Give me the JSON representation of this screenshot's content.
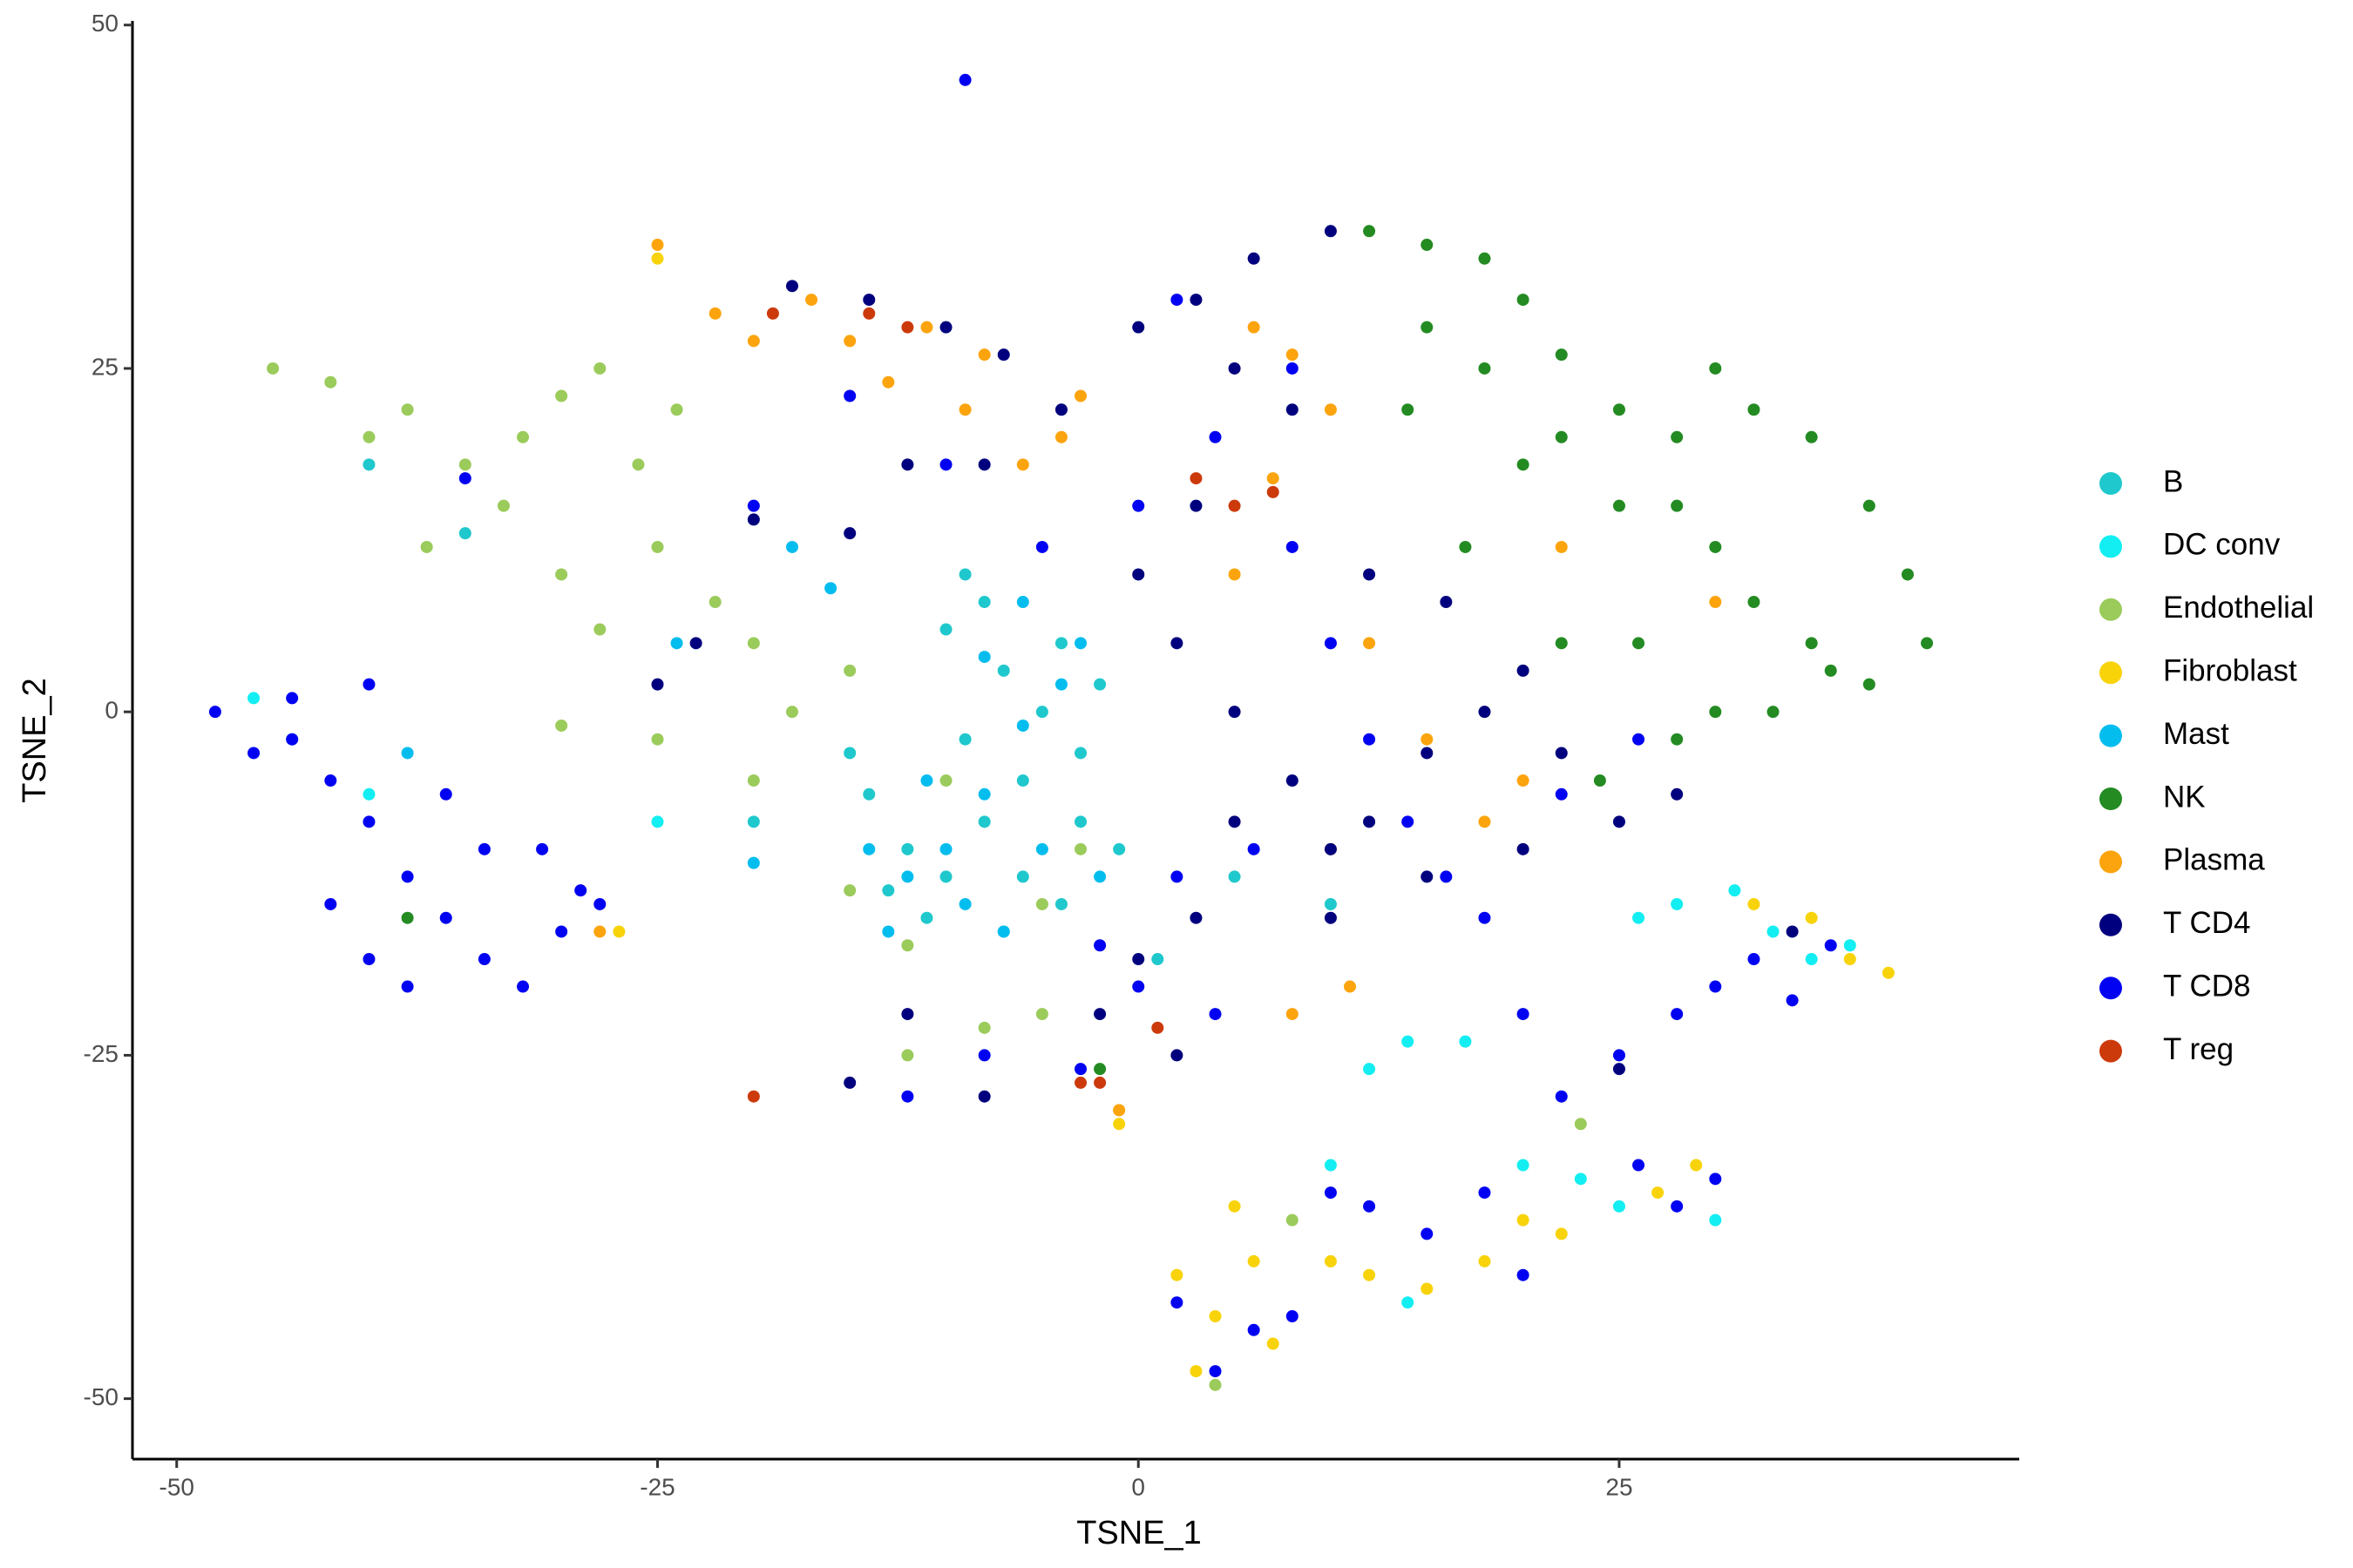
{
  "chart_data": {
    "type": "scatter",
    "x_label": "TSNE_1",
    "y_label": "TSNE_2",
    "xlim": [
      -52.3,
      45.8
    ],
    "ylim": [
      -54.4,
      50.3
    ],
    "xticks": [
      -50,
      -25,
      0,
      25
    ],
    "yticks": [
      -50,
      -25,
      0,
      25,
      50
    ],
    "grid": false,
    "legend": "right",
    "series": [
      {
        "name": "B",
        "color": "#1fc8cc",
        "x": [
          -12,
          -10,
          -8,
          -6,
          -5,
          -4,
          -7,
          -9,
          -13,
          -11,
          -6,
          -3,
          -2,
          -8,
          -10,
          -14,
          -4,
          -1,
          -15,
          -7,
          1,
          5,
          -20,
          -9,
          -3,
          10,
          -35,
          -40
        ],
        "values": [
          -10,
          -12,
          -8,
          -5,
          0,
          5,
          3,
          -2,
          -13,
          -15,
          -12,
          -8,
          2,
          8,
          6,
          -6,
          -14,
          -10,
          -3,
          -16,
          -18,
          -12,
          -8,
          10,
          -3,
          -14,
          13,
          18
        ]
      },
      {
        "name": "DC conv",
        "color": "#12eef2",
        "x": [
          28,
          31,
          33,
          35,
          37,
          14,
          12,
          17,
          20,
          10,
          14,
          25,
          30,
          23,
          26,
          -46,
          -40,
          -25
        ],
        "values": [
          -14,
          -13,
          -16,
          -18,
          -17,
          -24,
          -26,
          -24,
          -33,
          -33,
          -43,
          -36,
          -37,
          -34,
          -15,
          1,
          -6,
          -8
        ]
      },
      {
        "name": "Endothelial",
        "color": "#9bcb5b",
        "x": [
          -45,
          -42,
          -38,
          -35,
          -32,
          -30,
          -28,
          -33,
          -37,
          -30,
          -25,
          -22,
          -20,
          -28,
          -18,
          -20,
          -15,
          -12,
          -5,
          -3,
          -30,
          -25,
          -40,
          -26,
          -24,
          -15,
          -10,
          -8,
          -12,
          -5,
          23,
          4,
          8
        ],
        "values": [
          25,
          24,
          22,
          18,
          20,
          23,
          25,
          15,
          12,
          10,
          12,
          8,
          5,
          6,
          0,
          -5,
          -13,
          -17,
          -14,
          -10,
          -1,
          -2,
          20,
          18,
          22,
          3,
          -5,
          -23,
          -25,
          -22,
          -30,
          -49,
          -37
        ]
      },
      {
        "name": "Fibroblast",
        "color": "#f8d30a",
        "x": [
          2,
          4,
          6,
          3,
          7,
          5,
          10,
          12,
          15,
          18,
          20,
          22,
          27,
          29,
          32,
          35,
          37,
          39,
          -1,
          -1,
          -25,
          -27
        ],
        "values": [
          -41,
          -44,
          -40,
          -48,
          -46,
          -36,
          -40,
          -41,
          -42,
          -40,
          -37,
          -38,
          -35,
          -33,
          -14,
          -15,
          -18,
          -19,
          -30,
          -29,
          33,
          -16
        ]
      },
      {
        "name": "Mast",
        "color": "#04bdef",
        "x": [
          -12,
          -10,
          -8,
          -6,
          -4,
          -3,
          -6,
          -11,
          -13,
          -9,
          -5,
          -2,
          -7,
          -14,
          -8,
          -16,
          -18,
          -24,
          -38,
          -44,
          -20
        ],
        "values": [
          -12,
          -10,
          -6,
          -1,
          2,
          5,
          8,
          -5,
          -16,
          -14,
          -10,
          -12,
          -16,
          -10,
          4,
          9,
          12,
          5,
          -3,
          -2,
          -11
        ]
      },
      {
        "name": "NK",
        "color": "#238b22",
        "x": [
          12,
          15,
          18,
          20,
          22,
          25,
          28,
          30,
          32,
          35,
          38,
          40,
          41,
          38,
          35,
          32,
          30,
          28,
          25,
          22,
          18,
          15,
          20,
          26,
          30,
          28,
          33,
          36,
          14,
          17,
          22,
          24,
          -2,
          -38
        ],
        "values": [
          35,
          34,
          33,
          30,
          26,
          22,
          20,
          25,
          22,
          20,
          15,
          10,
          5,
          2,
          5,
          8,
          12,
          15,
          15,
          20,
          25,
          28,
          18,
          5,
          0,
          -2,
          0,
          3,
          22,
          12,
          5,
          -5,
          -26,
          -15
        ]
      },
      {
        "name": "Plasma",
        "color": "#fca40d",
        "x": [
          -22,
          -20,
          -17,
          -15,
          -13,
          -11,
          -9,
          -8,
          -6,
          -4,
          -3,
          6,
          8,
          10,
          7,
          12,
          15,
          18,
          10,
          20,
          -25,
          -28,
          -1,
          8,
          5,
          11,
          30,
          22
        ],
        "values": [
          29,
          27,
          30,
          27,
          24,
          28,
          22,
          26,
          18,
          20,
          23,
          28,
          26,
          22,
          17,
          5,
          -2,
          -8,
          -10,
          -5,
          34,
          -16,
          -29,
          -22,
          10,
          -20,
          8,
          12
        ]
      },
      {
        "name": "T CD4",
        "color": "#00007e",
        "x": [
          -18,
          -14,
          -10,
          -7,
          -4,
          -8,
          -12,
          -15,
          -20,
          -23,
          -25,
          0,
          3,
          6,
          5,
          8,
          3,
          0,
          2,
          5,
          8,
          10,
          12,
          15,
          18,
          20,
          22,
          20,
          15,
          10,
          5,
          3,
          0,
          -2,
          2,
          -12,
          -15,
          12,
          16,
          25,
          28,
          10,
          -8,
          25,
          34
        ],
        "values": [
          31,
          30,
          28,
          26,
          22,
          18,
          18,
          13,
          14,
          5,
          2,
          28,
          30,
          33,
          25,
          22,
          15,
          10,
          5,
          0,
          -5,
          -10,
          -8,
          -3,
          0,
          3,
          -3,
          -10,
          -12,
          -15,
          -8,
          -15,
          -18,
          -22,
          -25,
          -22,
          -27,
          10,
          8,
          -8,
          -6,
          35,
          -28,
          -26,
          -16
        ]
      },
      {
        "name": "T CD8",
        "color": "#0202f2",
        "x": [
          -48,
          -46,
          -44,
          -42,
          -40,
          -38,
          -36,
          -34,
          -32,
          -30,
          -28,
          -36,
          -40,
          -38,
          -42,
          -44,
          -40,
          -34,
          -31,
          -29,
          -15,
          -10,
          -5,
          0,
          4,
          8,
          10,
          12,
          14,
          16,
          18,
          6,
          2,
          -2,
          0,
          4,
          -12,
          -8,
          -3,
          22,
          26,
          8,
          2,
          -9,
          -35,
          -20,
          25,
          28,
          30,
          32,
          34,
          36,
          20,
          22,
          18,
          28,
          26,
          12,
          6,
          4,
          2,
          8,
          10,
          15,
          20,
          30
        ],
        "values": [
          0,
          -3,
          -2,
          -5,
          -8,
          -12,
          -15,
          -18,
          -20,
          -16,
          -14,
          -6,
          -18,
          -20,
          -14,
          1,
          2,
          -10,
          -10,
          -13,
          23,
          18,
          12,
          15,
          20,
          12,
          5,
          -2,
          -8,
          -12,
          -15,
          -10,
          -12,
          -17,
          -20,
          -22,
          -28,
          -25,
          -26,
          -6,
          -2,
          25,
          30,
          46,
          17,
          15,
          -25,
          -22,
          -20,
          -18,
          -21,
          -17,
          -22,
          -28,
          -35,
          -36,
          -33,
          -36,
          -45,
          -48,
          -43,
          -44,
          -35,
          -38,
          -41,
          -34
        ]
      },
      {
        "name": "T reg",
        "color": "#cc3a0c",
        "x": [
          -19,
          -14,
          -12,
          3,
          5,
          7,
          -2,
          -3,
          1,
          -20
        ],
        "values": [
          29,
          29,
          28,
          17,
          15,
          16,
          -27,
          -27,
          -23,
          -28
        ]
      }
    ]
  }
}
